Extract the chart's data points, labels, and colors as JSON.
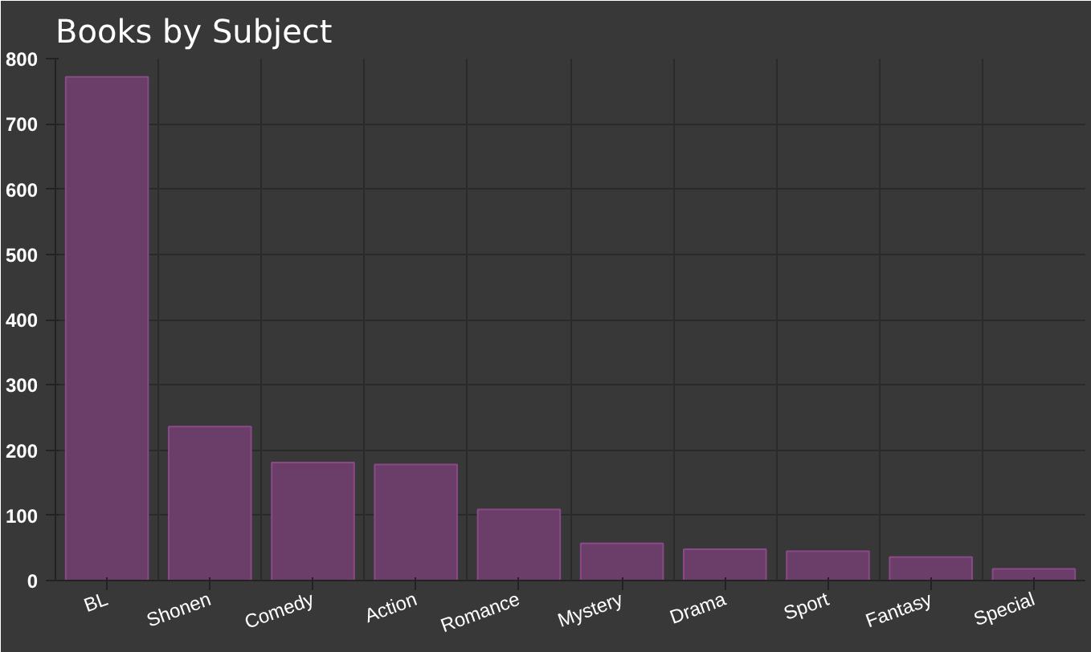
{
  "chart_data": {
    "type": "bar",
    "title": "Books by Subject",
    "categories": [
      "BL",
      "Shonen",
      "Comedy",
      "Action",
      "Romance",
      "Mystery",
      "Drama",
      "Sport",
      "Fantasy",
      "Special"
    ],
    "values": [
      772,
      236,
      181,
      178,
      109,
      57,
      48,
      45,
      36,
      18
    ],
    "color": "#6b3d69",
    "ylim": [
      0,
      800
    ],
    "yticks": [
      0,
      100,
      200,
      300,
      400,
      500,
      600,
      700,
      800
    ],
    "grid": true
  }
}
